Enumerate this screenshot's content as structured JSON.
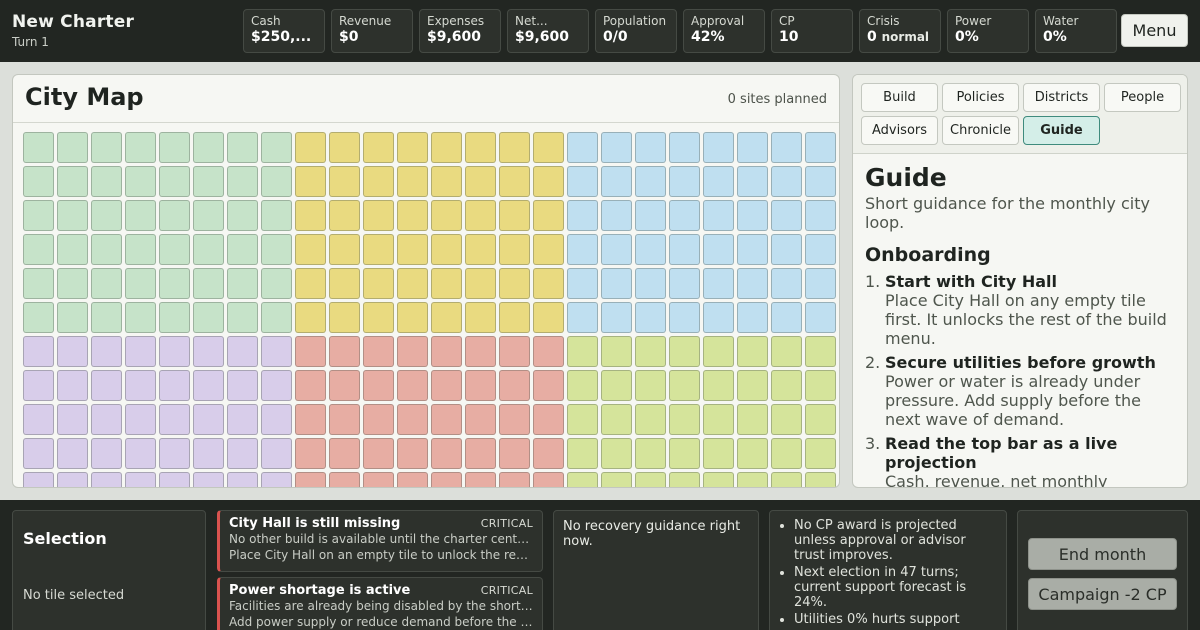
{
  "header": {
    "title": "New Charter",
    "turn": "Turn 1",
    "menu_label": "Menu",
    "stats": [
      {
        "label": "Cash",
        "value": "$250,...",
        "sub": ""
      },
      {
        "label": "Revenue",
        "value": "$0",
        "sub": ""
      },
      {
        "label": "Expenses",
        "value": "$9,600",
        "sub": ""
      },
      {
        "label": "Net...",
        "value": "$9,600",
        "sub": ""
      },
      {
        "label": "Population",
        "value": "0/0",
        "sub": ""
      },
      {
        "label": "Approval",
        "value": "42%",
        "sub": ""
      },
      {
        "label": "CP",
        "value": "10",
        "sub": ""
      },
      {
        "label": "Crisis",
        "value": "0",
        "sub": "normal"
      },
      {
        "label": "Power",
        "value": "0%",
        "sub": ""
      },
      {
        "label": "Water",
        "value": "0%",
        "sub": ""
      }
    ]
  },
  "map": {
    "title": "City Map",
    "status": "0 sites planned",
    "columns": 24,
    "rows": 11,
    "zone_colors": {
      "green": "#c6e3c9",
      "yellow": "#e9da80",
      "blue": "#bfdff0",
      "purple": "#d8cdea",
      "red": "#e7ada3",
      "lime": "#d5e49b"
    }
  },
  "tabs": [
    {
      "label": "Build",
      "active": false
    },
    {
      "label": "Policies",
      "active": false
    },
    {
      "label": "Districts",
      "active": false
    },
    {
      "label": "People",
      "active": false
    },
    {
      "label": "Advisors",
      "active": false
    },
    {
      "label": "Chronicle",
      "active": false
    },
    {
      "label": "Guide",
      "active": true
    }
  ],
  "guide": {
    "title": "Guide",
    "lede": "Short guidance for the monthly city loop.",
    "section": "Onboarding",
    "steps": [
      {
        "num": "1.",
        "title": "Start with City Hall",
        "text": "Place City Hall on any empty tile first. It unlocks the rest of the build menu."
      },
      {
        "num": "2.",
        "title": "Secure utilities before growth",
        "text": "Power or water is already under pressure. Add supply before the next wave of demand."
      },
      {
        "num": "3.",
        "title": "Read the top bar as a live projection",
        "text": "Cash, revenue, net monthly"
      }
    ]
  },
  "selection": {
    "title": "Selection",
    "subtitle": "No tile selected"
  },
  "alerts": [
    {
      "title": "City Hall is still missing",
      "severity": "CRITICAL",
      "lines": [
        "No other build is available until the charter center is placed.",
        "Place City Hall on an empty tile to unlock the rest of the build menu."
      ]
    },
    {
      "title": "Power shortage is active",
      "severity": "CRITICAL",
      "lines": [
        "Facilities are already being disabled by the shortage.",
        "Add power supply or reduce demand before the shortage spreads."
      ]
    }
  ],
  "recovery": "No recovery guidance right now.",
  "forecast": [
    "No CP award is projected unless approval or advisor trust improves.",
    "Next election in 47 turns; current support forecast is 24%.",
    "Utilities 0% hurts support"
  ],
  "actions": {
    "end_month": "End month",
    "campaign": "Campaign -2 CP"
  }
}
